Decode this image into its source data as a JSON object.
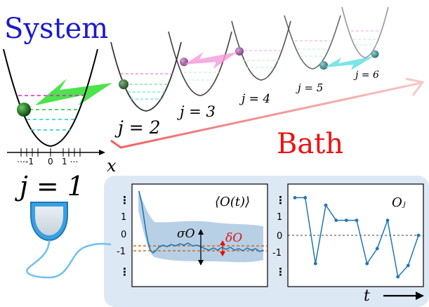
{
  "system_label": "System",
  "bath_label": "Bath",
  "axis": {
    "x_label": "x",
    "ticks": [
      "⋯-1",
      "0",
      "1 ⋯"
    ]
  },
  "wells": [
    {
      "label": "j = 1"
    },
    {
      "label": "j = 2"
    },
    {
      "label": "j = 3"
    },
    {
      "label": "j = 4"
    },
    {
      "label": "j = 5"
    },
    {
      "label": "j = 6"
    }
  ],
  "panel_left": {
    "title": "⟨O(t)⟩",
    "yticks": [
      "⋮",
      "1",
      "0",
      "-1",
      "⋮"
    ],
    "sigma_label": "σO",
    "delta_label": "δO"
  },
  "panel_right": {
    "title": "Oⱼ",
    "yticks": [
      "⋮",
      "1",
      "0",
      "-1",
      "⋮"
    ],
    "x_label": "t",
    "chart_data": {
      "type": "line",
      "x": [
        1,
        2,
        3,
        4,
        5,
        6,
        7,
        8,
        9,
        10,
        11,
        12,
        13
      ],
      "values": [
        2,
        2,
        -1.5,
        1.6,
        0.8,
        0.8,
        0.8,
        -1.5,
        -0.7,
        0.8,
        -2.2,
        -1.6,
        0
      ],
      "ylim": [
        -2.5,
        2.5
      ]
    }
  },
  "colors": {
    "system": "#1a1acc",
    "bath": "#ee1111",
    "panel_bg": "#dde8f5",
    "curve": "#1f77b4",
    "band": "#b7d0e6",
    "orange": "#d2691e"
  }
}
